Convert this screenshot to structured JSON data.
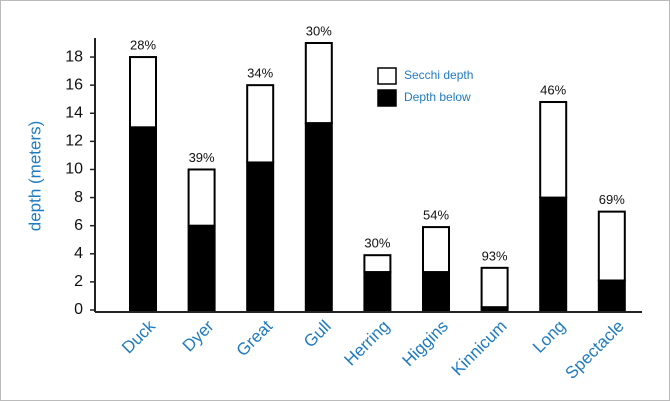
{
  "chart_data": {
    "type": "stacked_bar",
    "y_label": "depth (meters)",
    "categories": [
      "Duck",
      "Dyer",
      "Great",
      "Gull",
      "Herring",
      "Higgins",
      "Kinnicum",
      "Long",
      "Spectacle"
    ],
    "series": [
      {
        "name": "Depth below",
        "color": "#000000",
        "values": [
          13,
          6,
          10.5,
          13.3,
          2.7,
          2.7,
          0.2,
          8,
          2.1
        ]
      },
      {
        "name": "Secchi depth",
        "color": "#ffffff",
        "values": [
          5,
          4,
          5.5,
          5.7,
          1.2,
          3.2,
          2.8,
          6.8,
          4.9
        ]
      }
    ],
    "annotations": [
      "28%",
      "39%",
      "34%",
      "30%",
      "30%",
      "54%",
      "93%",
      "46%",
      "69%"
    ],
    "ylim": [
      0,
      19
    ],
    "yticks": [
      0,
      2,
      4,
      6,
      8,
      10,
      12,
      14,
      16,
      18
    ],
    "legend": "top-center"
  }
}
